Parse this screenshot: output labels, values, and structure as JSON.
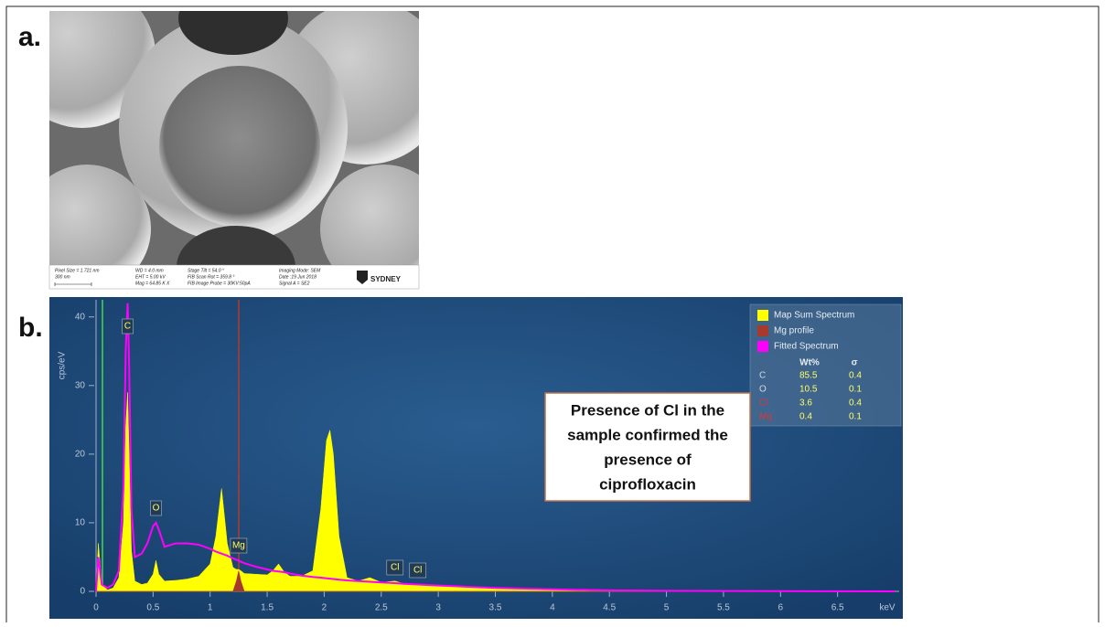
{
  "panel_a": {
    "label": "a.",
    "sem_info": [
      "Pixel Size = 1.721 nm",
      "300 nm",
      "WD = 4.0 mm",
      "EHT = 5.00 kV",
      "Mag = 64.85 K X",
      "Stage Tilt = 54.0 °",
      "FIB Scan Rot = 359.8 °",
      "FIB Image Probe = 30KV:50pA",
      "Imaging Mode: SEM",
      "Date :19 Jun 2018",
      "Signal A = SE2",
      "SYDNEY"
    ]
  },
  "panel_b": {
    "label": "b.",
    "annotation_lines": [
      "Presence of Cl in the",
      "sample confirmed the",
      "presence of",
      "ciprofloxacin"
    ],
    "quant_table": {
      "headers": [
        "Wt%",
        "σ"
      ],
      "rows": [
        {
          "element": "C",
          "wt": 85.5,
          "sigma": 0.4,
          "color": "#d4d8de"
        },
        {
          "element": "O",
          "wt": 10.5,
          "sigma": 0.1,
          "color": "#d4d8de"
        },
        {
          "element": "Cl",
          "wt": 3.6,
          "sigma": 0.4,
          "color": "#e03434"
        },
        {
          "element": "Mg",
          "wt": 0.4,
          "sigma": 0.1,
          "color": "#e03434"
        }
      ]
    }
  },
  "chart_data": {
    "type": "spectrum",
    "y_label": "cps/eV",
    "x_label": "keV",
    "xlim": [
      0,
      7
    ],
    "ylim": [
      0,
      42.5
    ],
    "xticks": [
      0,
      0.5,
      1,
      1.5,
      2,
      2.5,
      3,
      3.5,
      4,
      4.5,
      5,
      5.5,
      6,
      6.5
    ],
    "yticks": [
      0,
      10,
      20,
      30,
      40
    ],
    "x": [
      0,
      0.02,
      0.05,
      0.1,
      0.15,
      0.2,
      0.24,
      0.26,
      0.277,
      0.29,
      0.31,
      0.34,
      0.4,
      0.45,
      0.5,
      0.525,
      0.55,
      0.6,
      0.7,
      0.8,
      0.9,
      1.0,
      1.05,
      1.1,
      1.15,
      1.2,
      1.23,
      1.25,
      1.27,
      1.3,
      1.4,
      1.5,
      1.55,
      1.6,
      1.65,
      1.7,
      1.8,
      1.9,
      1.97,
      2.02,
      2.05,
      2.08,
      2.13,
      2.2,
      2.3,
      2.4,
      2.5,
      2.62,
      2.7,
      2.82,
      3.0,
      3.5,
      4.0,
      4.5,
      5.0,
      6.0,
      7.0
    ],
    "series": [
      {
        "name": "Map Sum Spectrum",
        "color": "#ffff00",
        "style": "area",
        "values": [
          0,
          7,
          1,
          0.2,
          0.5,
          2,
          10,
          24,
          29,
          20,
          6,
          1.5,
          1,
          1.2,
          2.5,
          4.5,
          2.5,
          1.5,
          1.6,
          1.8,
          2.2,
          4,
          8,
          15,
          7,
          3.5,
          3.2,
          3.2,
          3,
          2.6,
          2.5,
          2.4,
          3,
          4,
          2.8,
          2.2,
          2.2,
          3,
          12,
          22,
          23.5,
          20,
          8,
          2,
          1.5,
          2,
          1.3,
          1.5,
          1.1,
          1,
          0.8,
          0.5,
          0.3,
          0.15,
          0.05,
          0.02,
          0
        ]
      },
      {
        "name": "Mg profile",
        "color": "#a63a2c",
        "style": "area",
        "values": [
          0,
          0,
          0,
          0,
          0,
          0,
          0,
          0,
          0,
          0,
          0,
          0,
          0,
          0,
          0,
          0,
          0,
          0,
          0,
          0,
          0,
          0,
          0,
          0,
          0,
          0,
          1.5,
          3,
          1.5,
          0,
          0,
          0,
          0,
          0,
          0,
          0,
          0,
          0,
          0,
          0,
          0,
          0,
          0,
          0,
          0,
          0,
          0,
          0,
          0,
          0,
          0,
          0,
          0,
          0,
          0,
          0,
          0
        ]
      },
      {
        "name": "Fitted Spectrum",
        "color": "#ff00ff",
        "style": "line",
        "values": [
          0,
          5,
          1,
          0.5,
          1,
          3,
          15,
          35,
          42,
          33,
          12,
          5,
          5.5,
          7,
          9.5,
          10,
          9,
          6.5,
          7,
          7,
          6.8,
          6.2,
          5.8,
          5.5,
          5.2,
          4.8,
          4.6,
          4.5,
          4.3,
          4.1,
          3.6,
          3.2,
          3,
          2.9,
          2.8,
          2.6,
          2.3,
          2.1,
          2,
          1.9,
          1.85,
          1.8,
          1.7,
          1.6,
          1.5,
          1.4,
          1.3,
          1.2,
          1.1,
          1,
          0.85,
          0.5,
          0.3,
          0.15,
          0.08,
          0.03,
          0
        ]
      }
    ],
    "peak_labels": [
      {
        "text": "C",
        "x": 0.277
      },
      {
        "text": "O",
        "x": 0.525
      },
      {
        "text": "Mg",
        "x": 1.25
      },
      {
        "text": "Cl",
        "x": 2.62
      },
      {
        "text": "Cl",
        "x": 2.82
      }
    ]
  }
}
